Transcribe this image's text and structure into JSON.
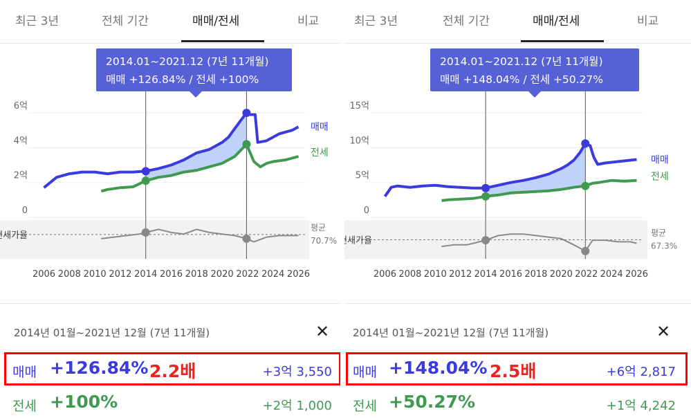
{
  "panels": [
    {
      "tabs": [
        "최근 3년",
        "전체 기간",
        "매매/전세",
        "비교"
      ],
      "active_tab": 2,
      "tooltip": {
        "line1": "2014.01~2021.12 (7년 11개월)",
        "line2": "매매 +126.84%  /  전세 +100%"
      },
      "range_text": "2014년 01월~2021년 12월 (7년 11개월)",
      "close_label": "✕",
      "summary": [
        {
          "label": "매매",
          "pct": "+126.84%",
          "multiple": "2.2배",
          "amount": "+3억 3,550"
        },
        {
          "label": "전세",
          "pct": "+100%",
          "multiple": "",
          "amount": "+2억 1,000"
        }
      ],
      "chart_data": {
        "type": "line",
        "x_ticks": [
          "2006",
          "2008",
          "2010",
          "2012",
          "2014",
          "2016",
          "2018",
          "2020",
          "2022",
          "2024",
          "2026"
        ],
        "xlim": [
          2005.7,
          2026.3
        ],
        "y_ticks": [
          "0",
          "2억",
          "4억",
          "6억"
        ],
        "ylim": [
          0,
          6.6
        ],
        "y_unit": "억",
        "selection": [
          2014.0,
          2021.92
        ],
        "series": [
          {
            "name": "매매",
            "color": "#3a3ae0",
            "x": [
              2006.0,
              2006.5,
              2007.0,
              2008.0,
              2009.0,
              2010.0,
              2011.0,
              2012.0,
              2013.0,
              2014.0,
              2015.0,
              2016.0,
              2017.0,
              2018.0,
              2019.0,
              2020.0,
              2020.5,
              2021.0,
              2021.5,
              2021.92,
              2022.2,
              2022.6,
              2022.8,
              2023.5,
              2024.5,
              2025.5,
              2026.0
            ],
            "y": [
              1.7,
              2.0,
              2.3,
              2.5,
              2.6,
              2.6,
              2.5,
              2.6,
              2.6,
              2.65,
              2.8,
              3.0,
              3.3,
              3.7,
              3.9,
              4.3,
              4.6,
              5.1,
              5.6,
              6.0,
              5.9,
              5.9,
              4.3,
              4.4,
              4.8,
              5.0,
              5.2
            ]
          },
          {
            "name": "전세",
            "color": "#3f9a50",
            "x": [
              2010.5,
              2011.0,
              2012.0,
              2013.0,
              2014.0,
              2015.0,
              2016.0,
              2017.0,
              2018.0,
              2019.0,
              2020.0,
              2021.0,
              2021.92,
              2022.5,
              2023.0,
              2023.5,
              2024.0,
              2025.0,
              2026.0
            ],
            "y": [
              1.5,
              1.6,
              1.7,
              1.75,
              2.1,
              2.3,
              2.4,
              2.6,
              2.7,
              2.9,
              3.1,
              3.5,
              4.2,
              3.2,
              2.9,
              3.1,
              3.2,
              3.3,
              3.5
            ]
          }
        ],
        "ratio": {
          "label": "전세가율",
          "avg_label": "평균",
          "avg_value": "70.7%",
          "avg": 70.7,
          "x": [
            2010.5,
            2011.5,
            2012.5,
            2013.5,
            2014.0,
            2015.0,
            2016.0,
            2017.0,
            2018.0,
            2019.0,
            2020.0,
            2021.0,
            2021.92,
            2022.5,
            2023.5,
            2024.5,
            2025.5,
            2026.0
          ],
          "y": [
            68,
            69,
            70,
            71,
            72,
            74,
            72,
            71,
            74,
            72,
            71,
            70,
            68,
            66,
            69,
            70,
            70,
            70
          ]
        }
      }
    },
    {
      "tabs": [
        "최근 3년",
        "전체 기간",
        "매매/전세",
        "비교"
      ],
      "active_tab": 2,
      "tooltip": {
        "line1": "2014.01~2021.12 (7년 11개월)",
        "line2": "매매 +148.04%  /  전세 +50.27%"
      },
      "range_text": "2014년 01월~2021년 12월 (7년 11개월)",
      "close_label": "✕",
      "summary": [
        {
          "label": "매매",
          "pct": "+148.04%",
          "multiple": "2.5배",
          "amount": "+6억 2,817"
        },
        {
          "label": "전세",
          "pct": "+50.27%",
          "multiple": "",
          "amount": "+1억 4,242"
        }
      ],
      "chart_data": {
        "type": "line",
        "x_ticks": [
          "2006",
          "2008",
          "2010",
          "2012",
          "2014",
          "2016",
          "2018",
          "2020",
          "2022",
          "2024",
          "2026"
        ],
        "xlim": [
          2005.7,
          2026.3
        ],
        "y_ticks": [
          "0",
          "5억",
          "10억",
          "15억"
        ],
        "ylim": [
          0,
          16.5
        ],
        "y_unit": "억",
        "selection": [
          2014.0,
          2021.92
        ],
        "series": [
          {
            "name": "매매",
            "color": "#3a3ae0",
            "x": [
              2006.0,
              2006.5,
              2007.0,
              2008.0,
              2009.0,
              2010.0,
              2011.0,
              2012.0,
              2013.0,
              2014.0,
              2015.0,
              2016.0,
              2017.0,
              2018.0,
              2019.0,
              2020.0,
              2020.5,
              2021.0,
              2021.5,
              2021.92,
              2022.3,
              2022.6,
              2022.9,
              2023.5,
              2024.5,
              2025.5,
              2026.0
            ],
            "y": [
              3.0,
              4.3,
              4.5,
              4.3,
              4.5,
              4.6,
              4.4,
              4.3,
              4.2,
              4.2,
              4.6,
              5.0,
              5.3,
              5.7,
              6.2,
              7.0,
              7.5,
              8.2,
              9.3,
              10.6,
              10.3,
              8.6,
              7.6,
              7.8,
              8.0,
              8.2,
              8.3
            ]
          },
          {
            "name": "전세",
            "color": "#3f9a50",
            "x": [
              2010.5,
              2011.0,
              2012.0,
              2013.0,
              2014.0,
              2015.0,
              2016.0,
              2017.0,
              2018.0,
              2019.0,
              2020.0,
              2021.0,
              2021.92,
              2022.5,
              2023.0,
              2024.0,
              2025.0,
              2026.0
            ],
            "y": [
              2.4,
              2.5,
              2.6,
              2.7,
              3.0,
              3.2,
              3.5,
              3.6,
              3.7,
              3.8,
              4.0,
              4.3,
              4.5,
              4.9,
              5.0,
              5.3,
              5.2,
              5.3
            ]
          }
        ],
        "ratio": {
          "label": "전세가율",
          "avg_label": "평균",
          "avg_value": "67.3%",
          "avg": 67.3,
          "x": [
            2010.5,
            2011.5,
            2012.5,
            2013.5,
            2014.0,
            2015.0,
            2016.0,
            2017.0,
            2018.0,
            2019.0,
            2020.0,
            2021.0,
            2021.92,
            2022.5,
            2023.5,
            2024.5,
            2025.5,
            2026.0
          ],
          "y": [
            63,
            64,
            64,
            66,
            67,
            70,
            71,
            71,
            70,
            69,
            68,
            64,
            60,
            67,
            67,
            66,
            66,
            65
          ]
        }
      }
    }
  ]
}
